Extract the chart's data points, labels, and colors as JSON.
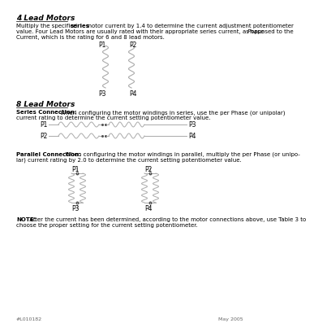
{
  "title_4lead": "4 Lead Motors",
  "body_4lead_pre": "Multiply the specified ",
  "body_4lead_bold": "series",
  "body_4lead_post": " motor current by 1.4 to determine the current adjustment potentiometer",
  "body_4lead_line2": "value. Four Lead Motors are usually rated with their appropriate series current, as opposed to the ",
  "body_4lead_italic": "Phase",
  "body_4lead_line3": "Current, which is the rating for 6 and 8 lead motors.",
  "title_8lead": "8 Lead Motors",
  "series_bold": "Series Connection:",
  "series_rest": " When configuring the motor windings in series, use the per Phase (or unipolar)",
  "series_line2": "current rating to determine the current setting potentiometer value.",
  "parallel_bold": "Parallel Connection:",
  "parallel_rest": " When configuring the motor windings in parallel, multiply the per Phase (or unipo-",
  "parallel_line2": "lar) current rating by 2.0 to determine the current setting potentiometer value.",
  "note_bold": "NOTE:",
  "note_rest": " After the current has been determined, according to the motor connections above, use Table 3 to",
  "note_line2": "choose the proper setting for the current setting potentiometer.",
  "footer_left": "#L010182",
  "footer_right": "May 2005",
  "bg_color": "#ffffff",
  "text_color": "#000000",
  "line_color": "#aaaaaa",
  "dot_color": "#555555"
}
